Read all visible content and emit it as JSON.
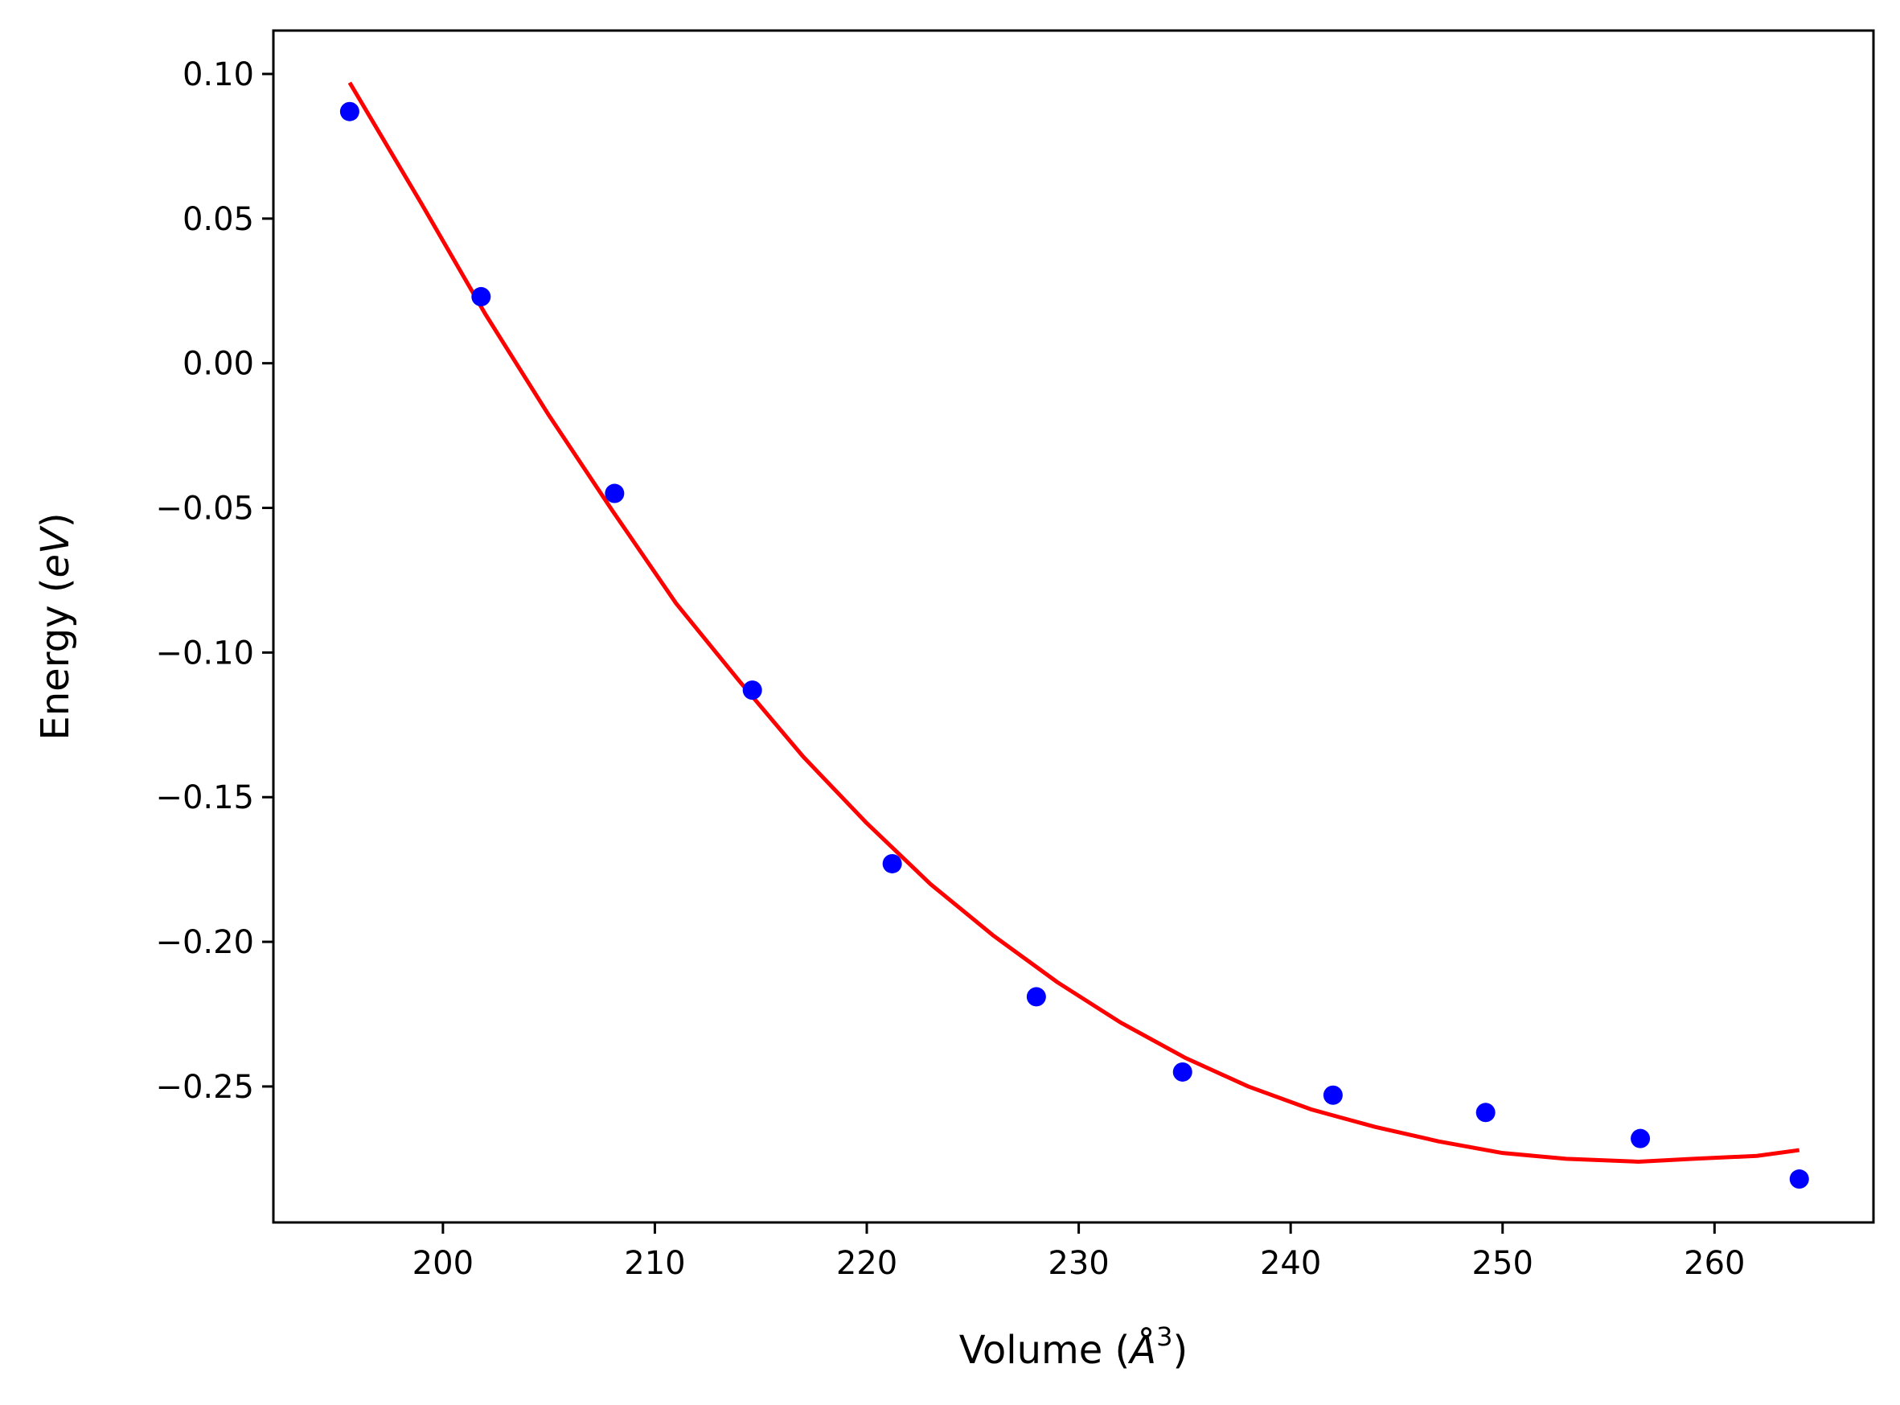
{
  "chart_data": {
    "type": "scatter",
    "xlabel": "Volume (Å³)",
    "ylabel": "Energy (eV)",
    "xlabel_parts": {
      "pre": "Volume (",
      "italic": "Å",
      "sup": "3",
      "post": ")"
    },
    "ylabel_parts": {
      "pre": "Energy (",
      "italic": "eV",
      "post": ")"
    },
    "xlim": [
      192,
      267.5
    ],
    "ylim": [
      -0.297,
      0.115
    ],
    "xticks": [
      200,
      210,
      220,
      230,
      240,
      250,
      260
    ],
    "yticks": [
      0.1,
      0.05,
      0.0,
      -0.05,
      -0.1,
      -0.15,
      -0.2,
      -0.25
    ],
    "xtick_labels": [
      "200",
      "210",
      "220",
      "230",
      "240",
      "250",
      "260"
    ],
    "ytick_labels": [
      "0.10",
      "0.05",
      "0.00",
      "−0.05",
      "−0.10",
      "−0.15",
      "−0.20",
      "−0.25"
    ],
    "grid": false,
    "series": [
      {
        "kind": "points",
        "color": "#0000ff",
        "x": [
          195.6,
          201.8,
          208.1,
          214.6,
          221.2,
          228.0,
          234.9,
          242.0,
          249.2,
          256.5,
          264.0
        ],
        "y": [
          0.087,
          0.023,
          -0.045,
          -0.113,
          -0.173,
          -0.219,
          -0.245,
          -0.253,
          -0.259,
          -0.268,
          -0.282
        ]
      },
      {
        "kind": "fit-line",
        "color": "#ff0000",
        "x": [
          195.6,
          199.0,
          202.0,
          205.0,
          208.0,
          211.0,
          214.0,
          217.0,
          220.0,
          223.0,
          226.0,
          229.0,
          232.0,
          235.0,
          238.0,
          241.0,
          244.0,
          247.0,
          250.0,
          253.0,
          256.4,
          259.0,
          262.0,
          264.0
        ],
        "y": [
          0.097,
          0.055,
          0.017,
          -0.018,
          -0.051,
          -0.083,
          -0.11,
          -0.136,
          -0.159,
          -0.18,
          -0.198,
          -0.214,
          -0.228,
          -0.24,
          -0.25,
          -0.258,
          -0.264,
          -0.269,
          -0.273,
          -0.275,
          -0.276,
          -0.275,
          -0.274,
          -0.272
        ]
      }
    ]
  }
}
